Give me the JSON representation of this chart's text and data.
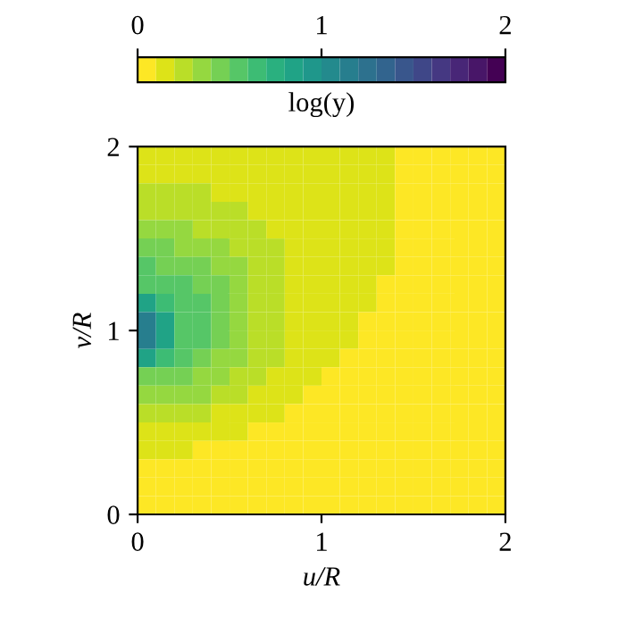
{
  "chart_data": {
    "type": "heatmap",
    "xlabel": "u/R",
    "ylabel": "v/R",
    "clabel": "log(y)",
    "xlim": [
      0,
      2
    ],
    "ylim": [
      0,
      2
    ],
    "xticks": [
      0,
      1,
      2
    ],
    "yticks": [
      0,
      1,
      2
    ],
    "clim": [
      0,
      2
    ],
    "cticks": [
      0,
      1,
      2
    ],
    "cells": [
      [
        0.15,
        0.15,
        0.15,
        0.15,
        0.15,
        0.15,
        0.15,
        0.15,
        0.15,
        0.15,
        0.15,
        0.15,
        0.15,
        0.15,
        0.05,
        0.05,
        0.05,
        0.05,
        0.05,
        0.05
      ],
      [
        0.15,
        0.15,
        0.15,
        0.15,
        0.15,
        0.15,
        0.15,
        0.15,
        0.15,
        0.15,
        0.15,
        0.15,
        0.15,
        0.15,
        0.05,
        0.05,
        0.05,
        0.05,
        0.05,
        0.05
      ],
      [
        0.25,
        0.25,
        0.25,
        0.25,
        0.15,
        0.15,
        0.15,
        0.15,
        0.15,
        0.15,
        0.15,
        0.15,
        0.15,
        0.15,
        0.05,
        0.05,
        0.05,
        0.05,
        0.05,
        0.05
      ],
      [
        0.25,
        0.25,
        0.25,
        0.25,
        0.25,
        0.25,
        0.15,
        0.15,
        0.15,
        0.15,
        0.15,
        0.15,
        0.15,
        0.15,
        0.05,
        0.05,
        0.05,
        0.05,
        0.05,
        0.05
      ],
      [
        0.35,
        0.35,
        0.35,
        0.25,
        0.25,
        0.25,
        0.25,
        0.15,
        0.15,
        0.15,
        0.15,
        0.15,
        0.15,
        0.15,
        0.05,
        0.05,
        0.05,
        0.05,
        0.05,
        0.05
      ],
      [
        0.45,
        0.45,
        0.35,
        0.35,
        0.35,
        0.25,
        0.25,
        0.25,
        0.15,
        0.15,
        0.15,
        0.15,
        0.15,
        0.15,
        0.05,
        0.05,
        0.05,
        0.05,
        0.05,
        0.05
      ],
      [
        0.55,
        0.45,
        0.45,
        0.45,
        0.35,
        0.35,
        0.25,
        0.25,
        0.15,
        0.15,
        0.15,
        0.15,
        0.15,
        0.15,
        0.05,
        0.05,
        0.05,
        0.05,
        0.05,
        0.05
      ],
      [
        0.55,
        0.55,
        0.55,
        0.45,
        0.45,
        0.35,
        0.25,
        0.25,
        0.15,
        0.15,
        0.15,
        0.15,
        0.15,
        0.05,
        0.05,
        0.05,
        0.05,
        0.05,
        0.05,
        0.05
      ],
      [
        0.85,
        0.65,
        0.55,
        0.55,
        0.45,
        0.35,
        0.25,
        0.25,
        0.15,
        0.15,
        0.15,
        0.15,
        0.15,
        0.05,
        0.05,
        0.05,
        0.05,
        0.05,
        0.05,
        0.05
      ],
      [
        1.15,
        0.85,
        0.55,
        0.55,
        0.45,
        0.35,
        0.25,
        0.25,
        0.15,
        0.15,
        0.15,
        0.15,
        0.05,
        0.05,
        0.05,
        0.05,
        0.05,
        0.05,
        0.05,
        0.05
      ],
      [
        1.15,
        0.85,
        0.55,
        0.55,
        0.45,
        0.35,
        0.25,
        0.25,
        0.15,
        0.15,
        0.15,
        0.15,
        0.05,
        0.05,
        0.05,
        0.05,
        0.05,
        0.05,
        0.05,
        0.05
      ],
      [
        0.85,
        0.65,
        0.55,
        0.45,
        0.35,
        0.35,
        0.25,
        0.25,
        0.15,
        0.15,
        0.15,
        0.05,
        0.05,
        0.05,
        0.05,
        0.05,
        0.05,
        0.05,
        0.05,
        0.05
      ],
      [
        0.45,
        0.45,
        0.45,
        0.35,
        0.35,
        0.25,
        0.25,
        0.15,
        0.15,
        0.15,
        0.05,
        0.05,
        0.05,
        0.05,
        0.05,
        0.05,
        0.05,
        0.05,
        0.05,
        0.05
      ],
      [
        0.35,
        0.35,
        0.35,
        0.35,
        0.25,
        0.25,
        0.15,
        0.15,
        0.15,
        0.05,
        0.05,
        0.05,
        0.05,
        0.05,
        0.05,
        0.05,
        0.05,
        0.05,
        0.05,
        0.05
      ],
      [
        0.25,
        0.25,
        0.25,
        0.25,
        0.15,
        0.15,
        0.15,
        0.15,
        0.05,
        0.05,
        0.05,
        0.05,
        0.05,
        0.05,
        0.05,
        0.05,
        0.05,
        0.05,
        0.05,
        0.05
      ],
      [
        0.15,
        0.15,
        0.15,
        0.15,
        0.15,
        0.15,
        0.05,
        0.05,
        0.05,
        0.05,
        0.05,
        0.05,
        0.05,
        0.05,
        0.05,
        0.05,
        0.05,
        0.05,
        0.05,
        0.05
      ],
      [
        0.15,
        0.15,
        0.15,
        0.05,
        0.05,
        0.05,
        0.05,
        0.05,
        0.05,
        0.05,
        0.05,
        0.05,
        0.05,
        0.05,
        0.05,
        0.05,
        0.05,
        0.05,
        0.05,
        0.05
      ],
      [
        0.05,
        0.05,
        0.05,
        0.05,
        0.05,
        0.05,
        0.05,
        0.05,
        0.05,
        0.05,
        0.05,
        0.05,
        0.05,
        0.05,
        0.05,
        0.05,
        0.05,
        0.05,
        0.05,
        0.05
      ],
      [
        0.05,
        0.05,
        0.05,
        0.05,
        0.05,
        0.05,
        0.05,
        0.05,
        0.05,
        0.05,
        0.05,
        0.05,
        0.05,
        0.05,
        0.05,
        0.05,
        0.05,
        0.05,
        0.05,
        0.05
      ],
      [
        0.05,
        0.05,
        0.05,
        0.05,
        0.05,
        0.05,
        0.05,
        0.05,
        0.05,
        0.05,
        0.05,
        0.05,
        0.05,
        0.05,
        0.05,
        0.05,
        0.05,
        0.05,
        0.05,
        0.05
      ]
    ]
  }
}
